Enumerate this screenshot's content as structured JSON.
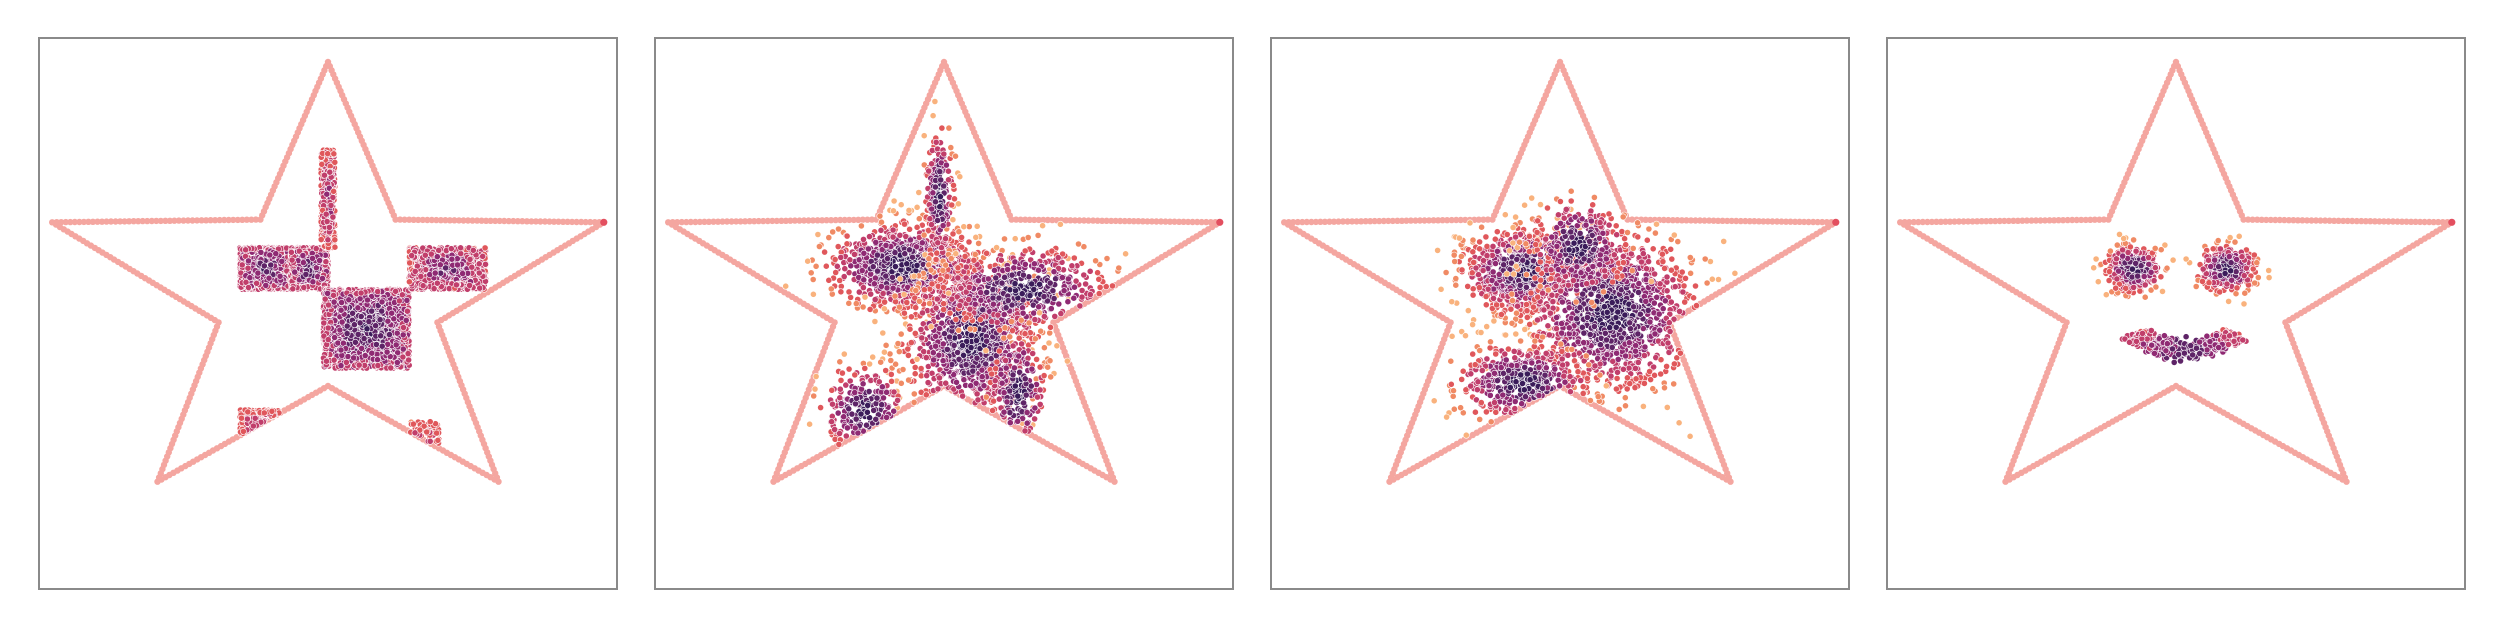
{
  "figure": {
    "star": {
      "edge_color": "#f4a6a0",
      "tip_color": "#e34f5f"
    },
    "colormap": [
      "#f9b27d",
      "#f08a64",
      "#e0575b",
      "#c13e6b",
      "#8f2a73",
      "#5e2467",
      "#3a1c5a"
    ]
  },
  "chart_data": [
    {
      "type": "scatter",
      "description_shape": "star-outline with sampled points",
      "xlim": [
        -1,
        1
      ],
      "ylim": [
        -1,
        1
      ],
      "grid": false,
      "axes_ticks": false,
      "point_sets": [
        {
          "kind": "rect",
          "rect": [
            -0.38,
            0.2,
            -0.16,
            0.02
          ],
          "density": 1300,
          "core": 0.8
        },
        {
          "kind": "rect",
          "rect": [
            -0.16,
            0.2,
            0.0,
            0.02
          ],
          "density": 900,
          "core": 0.8
        },
        {
          "kind": "rect",
          "rect": [
            -0.03,
            0.62,
            0.03,
            0.2
          ],
          "density": 400,
          "core": 0.6
        },
        {
          "kind": "rect",
          "rect": [
            -0.02,
            0.02,
            0.35,
            -0.32
          ],
          "density": 2200,
          "core": 0.85
        },
        {
          "kind": "rect",
          "rect": [
            0.35,
            0.2,
            0.68,
            0.02
          ],
          "density": 1000,
          "core": 0.7
        },
        {
          "kind": "rect",
          "rect": [
            -0.38,
            -0.5,
            -0.2,
            -0.65
          ],
          "density": 500,
          "core": 0.55
        },
        {
          "kind": "rect",
          "rect": [
            0.35,
            -0.55,
            0.48,
            -0.78
          ],
          "density": 200,
          "core": 0.5
        }
      ]
    },
    {
      "type": "scatter",
      "xlim": [
        -1,
        1
      ],
      "ylim": [
        -1,
        1
      ],
      "grid": false,
      "axes_ticks": false,
      "point_sets": [
        {
          "kind": "blob",
          "center": [
            -0.18,
            0.12
          ],
          "spread": [
            0.16,
            0.09
          ],
          "n": 900
        },
        {
          "kind": "blob",
          "center": [
            0.12,
            -0.2
          ],
          "spread": [
            0.14,
            0.16
          ],
          "n": 1100
        },
        {
          "kind": "blob",
          "center": [
            0.34,
            0.02
          ],
          "spread": [
            0.18,
            0.09
          ],
          "n": 500
        },
        {
          "kind": "blob",
          "center": [
            -0.02,
            0.42
          ],
          "spread": [
            0.03,
            0.14
          ],
          "n": 220
        },
        {
          "kind": "blob",
          "center": [
            -0.34,
            -0.5
          ],
          "spread": [
            0.09,
            0.09
          ],
          "n": 260
        },
        {
          "kind": "blob",
          "center": [
            0.32,
            -0.42
          ],
          "spread": [
            0.06,
            0.13
          ],
          "n": 200
        }
      ]
    },
    {
      "type": "scatter",
      "xlim": [
        -1,
        1
      ],
      "ylim": [
        -1,
        1
      ],
      "grid": false,
      "axes_ticks": false,
      "point_sets": [
        {
          "kind": "blob",
          "center": [
            -0.15,
            0.1
          ],
          "spread": [
            0.13,
            0.09
          ],
          "n": 900
        },
        {
          "kind": "blob",
          "center": [
            0.22,
            -0.08
          ],
          "spread": [
            0.18,
            0.16
          ],
          "n": 1300
        },
        {
          "kind": "blob",
          "center": [
            -0.16,
            -0.38
          ],
          "spread": [
            0.14,
            0.08
          ],
          "n": 500
        },
        {
          "kind": "blob",
          "center": [
            0.08,
            0.2
          ],
          "spread": [
            0.1,
            0.1
          ],
          "n": 300
        }
      ]
    },
    {
      "type": "scatter",
      "xlim": [
        -1,
        1
      ],
      "ylim": [
        -1,
        1
      ],
      "grid": false,
      "axes_ticks": false,
      "point_sets": [
        {
          "kind": "blob",
          "center": [
            -0.18,
            0.11
          ],
          "spread": [
            0.06,
            0.05
          ],
          "n": 330
        },
        {
          "kind": "blob",
          "center": [
            0.22,
            0.11
          ],
          "spread": [
            0.06,
            0.05
          ],
          "n": 330
        },
        {
          "kind": "arc",
          "center": [
            0.04,
            -0.1
          ],
          "radius": 0.26,
          "angle_range": [
            210,
            330
          ],
          "thickness": 0.035,
          "n": 360
        }
      ]
    }
  ]
}
